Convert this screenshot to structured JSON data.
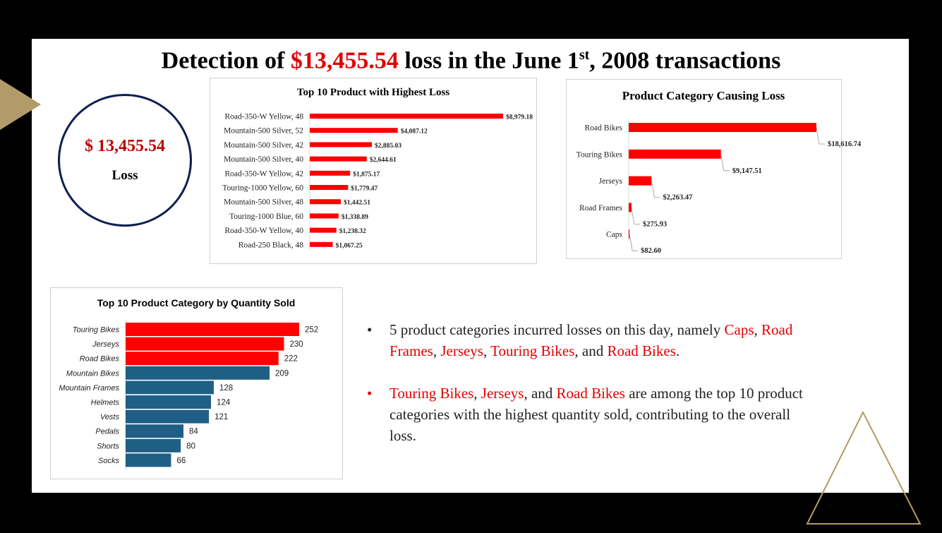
{
  "slide": {
    "title_pre": "Detection of ",
    "title_amount": "$13,455.54",
    "title_mid": " loss in the June 1",
    "title_sup": "st",
    "title_post": ", 2008 transactions",
    "accent_color": "#b39a6a",
    "loss_red": "#e00000"
  },
  "kpi": {
    "amount": "$ 13,455.54",
    "label": "Loss"
  },
  "bullets": [
    {
      "bullet": "•",
      "parts": [
        {
          "text": "5 product categories incurred losses on this day, namely ",
          "hl": false
        },
        {
          "text": "Caps",
          "hl": true
        },
        {
          "text": ", ",
          "hl": false
        },
        {
          "text": "Road Frames",
          "hl": true
        },
        {
          "text": ", ",
          "hl": false
        },
        {
          "text": "Jerseys",
          "hl": true
        },
        {
          "text": ", ",
          "hl": false
        },
        {
          "text": "Touring Bikes",
          "hl": true
        },
        {
          "text": ", and ",
          "hl": false
        },
        {
          "text": "Road Bikes",
          "hl": true
        },
        {
          "text": ".",
          "hl": false
        }
      ]
    },
    {
      "bullet": "•",
      "parts": [
        {
          "text": "Touring Bikes",
          "hl": true
        },
        {
          "text": ", ",
          "hl": false
        },
        {
          "text": "Jerseys",
          "hl": true
        },
        {
          "text": ", and ",
          "hl": false
        },
        {
          "text": "Road Bikes",
          "hl": true
        },
        {
          "text": " are among the top 10 product categories with the highest quantity sold, contributing to the overall loss.",
          "hl": false
        }
      ]
    }
  ],
  "chart_data": [
    {
      "id": "top10-products-loss",
      "type": "bar",
      "orientation": "horizontal",
      "title": "Top 10 Product with Highest Loss",
      "categories": [
        "Road-350-W Yellow, 48",
        "Mountain-500 Silver, 52",
        "Mountain-500 Silver, 42",
        "Mountain-500 Silver, 40",
        "Road-350-W Yellow, 42",
        "Touring-1000 Yellow, 60",
        "Mountain-500 Silver, 48",
        "Touring-1000 Blue, 60",
        "Road-350-W Yellow, 40",
        "Road-250 Black, 48"
      ],
      "values": [
        8979.18,
        4087.12,
        2885.03,
        2644.61,
        1875.17,
        1779.47,
        1442.51,
        1338.89,
        1238.32,
        1067.25
      ],
      "data_labels": [
        "$8,979.18",
        "$4,087.12",
        "$2,885.03",
        "$2,644.61",
        "$1,875.17",
        "$1,779.47",
        "$1,442.51",
        "$1,338.89",
        "$1,238.32",
        "$1,067.25"
      ],
      "color": "#ff0000",
      "xlabel": "",
      "ylabel": "",
      "grid": false
    },
    {
      "id": "category-loss",
      "type": "bar",
      "orientation": "horizontal",
      "title": "Product Category Causing Loss",
      "categories": [
        "Road Bikes",
        "Touring Bikes",
        "Jerseys",
        "Road Frames",
        "Caps"
      ],
      "values": [
        18616.74,
        9147.51,
        2263.47,
        275.93,
        82.6
      ],
      "data_labels": [
        "$18,616.74",
        "$9,147.51",
        "$2,263.47",
        "$275.93",
        "$82.60"
      ],
      "color": "#ff0000",
      "xlabel": "",
      "ylabel": "",
      "grid": false
    },
    {
      "id": "top10-quantity",
      "type": "bar",
      "orientation": "horizontal",
      "title": "Top 10 Product Category by Quantity Sold",
      "categories": [
        "Touring Bikes",
        "Jerseys",
        "Road Bikes",
        "Mountain Bikes",
        "Mountain Frames",
        "Helmets",
        "Vests",
        "Pedals",
        "Shorts",
        "Socks"
      ],
      "values": [
        252,
        230,
        222,
        209,
        128,
        124,
        121,
        84,
        80,
        66
      ],
      "data_labels": [
        "252",
        "230",
        "222",
        "209",
        "128",
        "124",
        "121",
        "84",
        "80",
        "66"
      ],
      "highlight": [
        true,
        true,
        true,
        false,
        false,
        false,
        false,
        false,
        false,
        false
      ],
      "highlight_color": "#ff0000",
      "color": "#1f5f85",
      "xlabel": "",
      "ylabel": "",
      "grid": false
    }
  ]
}
